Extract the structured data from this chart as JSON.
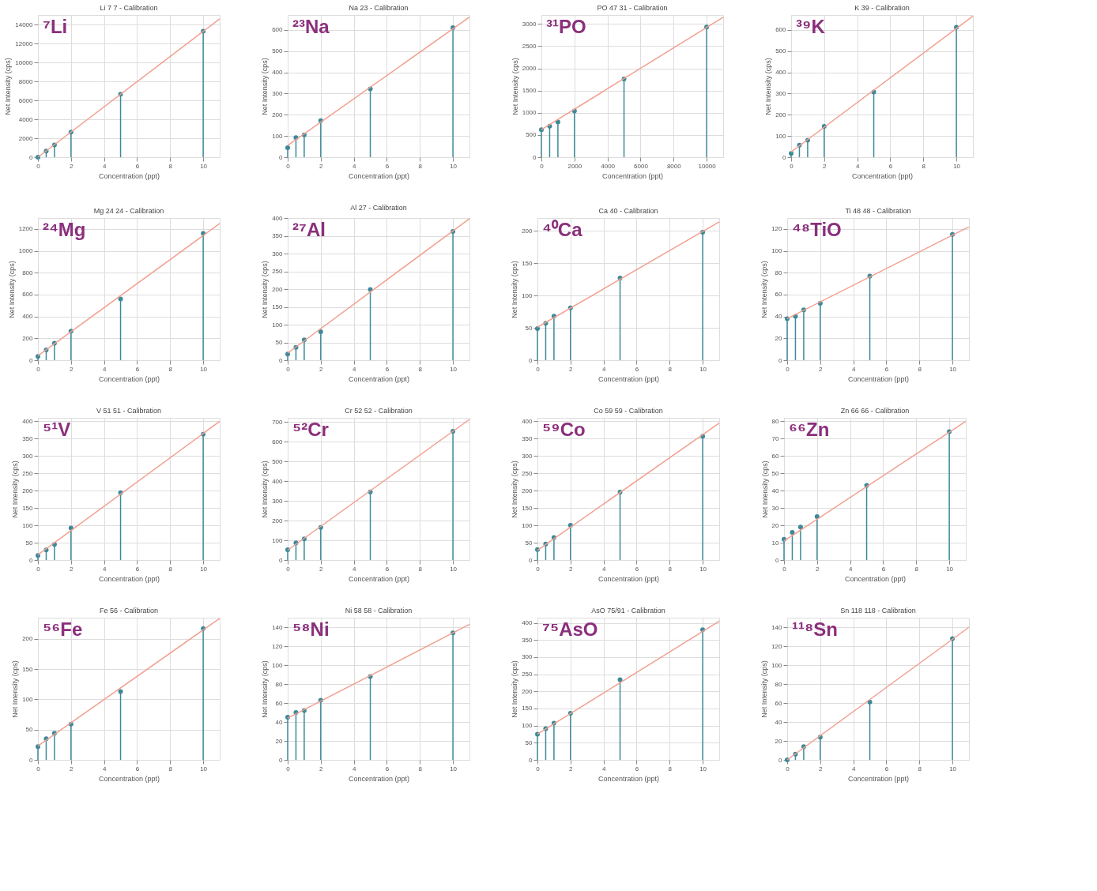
{
  "chart_data": [
    {
      "type": "lollipop",
      "title": "Li 7 7 - Calibration",
      "xlabel": "Concentration (ppt)",
      "ylabel": "Net Intensity (cps)",
      "annotations": [
        "⁷Li"
      ],
      "x": [
        0,
        0.5,
        1,
        2,
        5,
        10
      ],
      "xlim": [
        0,
        11
      ],
      "xticks": [
        0,
        2,
        4,
        6,
        8,
        10
      ],
      "ylim": [
        0,
        15000
      ],
      "yticks": [
        0,
        2000,
        4000,
        6000,
        8000,
        10000,
        12000,
        14000
      ],
      "grid": true,
      "marker": "circle",
      "series": [
        {
          "type": "lollipop",
          "color": "#3d8a99",
          "values": [
            0,
            650,
            1300,
            2650,
            6650,
            13300
          ]
        },
        {
          "type": "line",
          "color": "#f2a091",
          "marker": "none",
          "x": [
            0,
            11
          ],
          "values": [
            0,
            14600
          ]
        }
      ]
    },
    {
      "type": "lollipop",
      "title": "Na 23 - Calibration",
      "xlabel": "Concentration (ppt)",
      "ylabel": "Net Intensity (cps)",
      "annotations": [
        "²³Na"
      ],
      "x": [
        0,
        0.5,
        1,
        2,
        5,
        10
      ],
      "xlim": [
        0,
        11
      ],
      "xticks": [
        0,
        2,
        4,
        6,
        8,
        10
      ],
      "ylim": [
        0,
        670
      ],
      "yticks": [
        0,
        100,
        200,
        300,
        400,
        500,
        600
      ],
      "grid": true,
      "marker": "circle",
      "series": [
        {
          "type": "lollipop",
          "color": "#3d8a99",
          "values": [
            45,
            92,
            105,
            172,
            322,
            610
          ]
        },
        {
          "type": "line",
          "color": "#f2a091",
          "marker": "none",
          "x": [
            0,
            11
          ],
          "values": [
            55,
            660
          ]
        }
      ]
    },
    {
      "type": "lollipop",
      "title": "PO 47 31 - Calibration",
      "xlabel": "Concentration (ppt)",
      "ylabel": "Net Intensity (cps)",
      "annotations": [
        "³¹PO"
      ],
      "x": [
        0,
        500,
        1000,
        2000,
        5000,
        10000
      ],
      "xlim": [
        0,
        11000
      ],
      "xticks": [
        0,
        2000,
        4000,
        6000,
        8000,
        10000
      ],
      "ylim": [
        0,
        3200
      ],
      "yticks": [
        0,
        500,
        1000,
        1500,
        2000,
        2500,
        3000
      ],
      "grid": true,
      "marker": "circle",
      "series": [
        {
          "type": "lollipop",
          "color": "#3d8a99",
          "values": [
            620,
            700,
            790,
            1040,
            1760,
            2930
          ]
        },
        {
          "type": "line",
          "color": "#f2a091",
          "marker": "none",
          "x": [
            0,
            11000
          ],
          "values": [
            620,
            3150
          ]
        }
      ]
    },
    {
      "type": "lollipop",
      "title": "K 39 - Calibration",
      "xlabel": "Concentration (ppt)",
      "ylabel": "Net Intensity (cps)",
      "annotations": [
        "³⁹K"
      ],
      "x": [
        0,
        0.5,
        1,
        2,
        5,
        10
      ],
      "xlim": [
        0,
        11
      ],
      "xticks": [
        0,
        2,
        4,
        6,
        8,
        10
      ],
      "ylim": [
        0,
        670
      ],
      "yticks": [
        0,
        100,
        200,
        300,
        400,
        500,
        600
      ],
      "grid": true,
      "marker": "circle",
      "series": [
        {
          "type": "lollipop",
          "color": "#3d8a99",
          "values": [
            18,
            57,
            80,
            145,
            307,
            612
          ]
        },
        {
          "type": "line",
          "color": "#f2a091",
          "marker": "none",
          "x": [
            0,
            11
          ],
          "values": [
            25,
            665
          ]
        }
      ]
    },
    {
      "type": "lollipop",
      "title": "Mg 24 24 - Calibration",
      "xlabel": "Concentration (ppt)",
      "ylabel": "Net Intensity (cps)",
      "annotations": [
        "²⁴Mg"
      ],
      "x": [
        0,
        0.5,
        1,
        2,
        5,
        10
      ],
      "xlim": [
        0,
        11
      ],
      "xticks": [
        0,
        2,
        4,
        6,
        8,
        10
      ],
      "ylim": [
        0,
        1300
      ],
      "yticks": [
        0,
        200,
        400,
        600,
        800,
        1000,
        1200
      ],
      "grid": true,
      "marker": "circle",
      "series": [
        {
          "type": "lollipop",
          "color": "#3d8a99",
          "values": [
            35,
            93,
            155,
            265,
            560,
            1160
          ]
        },
        {
          "type": "line",
          "color": "#f2a091",
          "marker": "none",
          "x": [
            0,
            11
          ],
          "values": [
            40,
            1250
          ]
        }
      ]
    },
    {
      "type": "lollipop",
      "title": "Al 27 - Calibration",
      "xlabel": "Concentration (ppt)",
      "ylabel": "Net Intensity (cps)",
      "annotations": [
        "²⁷Al"
      ],
      "x": [
        0,
        0.5,
        1,
        2,
        5,
        10
      ],
      "xlim": [
        0,
        11
      ],
      "xticks": [
        0,
        2,
        4,
        6,
        8,
        10
      ],
      "ylim": [
        0,
        400
      ],
      "yticks": [
        0,
        50,
        100,
        150,
        200,
        250,
        300,
        350,
        400
      ],
      "grid": true,
      "marker": "circle",
      "series": [
        {
          "type": "lollipop",
          "color": "#3d8a99",
          "values": [
            17,
            36,
            57,
            80,
            199,
            362
          ]
        },
        {
          "type": "line",
          "color": "#f2a091",
          "marker": "none",
          "x": [
            0,
            11
          ],
          "values": [
            20,
            398
          ]
        }
      ]
    },
    {
      "type": "lollipop",
      "title": "Ca 40 - Calibration",
      "xlabel": "Concentration (ppt)",
      "ylabel": "Net Intensity (cps)",
      "annotations": [
        "⁴⁰Ca"
      ],
      "x": [
        0,
        0.5,
        1,
        2,
        5,
        10
      ],
      "xlim": [
        0,
        11
      ],
      "xticks": [
        0,
        2,
        4,
        6,
        8,
        10
      ],
      "ylim": [
        0,
        220
      ],
      "yticks": [
        0,
        50,
        100,
        150,
        200
      ],
      "grid": true,
      "marker": "circle",
      "series": [
        {
          "type": "lollipop",
          "color": "#3d8a99",
          "values": [
            49,
            57,
            68,
            81,
            127,
            198
          ]
        },
        {
          "type": "line",
          "color": "#f2a091",
          "marker": "none",
          "x": [
            0,
            11
          ],
          "values": [
            51,
            214
          ]
        }
      ]
    },
    {
      "type": "lollipop",
      "title": "Ti 48 48 - Calibration",
      "xlabel": "Concentration (ppt)",
      "ylabel": "Net Intensity (cps)",
      "annotations": [
        "⁴⁸TiO"
      ],
      "x": [
        0,
        0.5,
        1,
        2,
        5,
        10
      ],
      "xlim": [
        0,
        11
      ],
      "xticks": [
        0,
        2,
        4,
        6,
        8,
        10
      ],
      "ylim": [
        0,
        130
      ],
      "yticks": [
        0,
        20,
        40,
        60,
        80,
        100,
        120
      ],
      "grid": true,
      "marker": "circle",
      "series": [
        {
          "type": "lollipop",
          "color": "#3d8a99",
          "values": [
            38,
            40,
            46,
            52,
            77,
            115
          ]
        },
        {
          "type": "line",
          "color": "#f2a091",
          "marker": "none",
          "x": [
            0,
            11
          ],
          "values": [
            38,
            122
          ]
        }
      ]
    },
    {
      "type": "lollipop",
      "title": "V 51 51 - Calibration",
      "xlabel": "Concentration (ppt)",
      "ylabel": "Net Intensity (cps)",
      "annotations": [
        "⁵¹V"
      ],
      "x": [
        0,
        0.5,
        1,
        2,
        5,
        10
      ],
      "xlim": [
        0,
        11
      ],
      "xticks": [
        0,
        2,
        4,
        6,
        8,
        10
      ],
      "ylim": [
        0,
        410
      ],
      "yticks": [
        0,
        50,
        100,
        150,
        200,
        250,
        300,
        350,
        400
      ],
      "grid": true,
      "marker": "circle",
      "series": [
        {
          "type": "lollipop",
          "color": "#3d8a99",
          "values": [
            13,
            29,
            45,
            92,
            194,
            363
          ]
        },
        {
          "type": "line",
          "color": "#f2a091",
          "marker": "none",
          "x": [
            0,
            11
          ],
          "values": [
            15,
            400
          ]
        }
      ]
    },
    {
      "type": "lollipop",
      "title": "Cr 52 52 - Calibration",
      "xlabel": "Concentration (ppt)",
      "ylabel": "Net Intensity (cps)",
      "annotations": [
        "⁵²Cr"
      ],
      "x": [
        0,
        0.5,
        1,
        2,
        5,
        10
      ],
      "xlim": [
        0,
        11
      ],
      "xticks": [
        0,
        2,
        4,
        6,
        8,
        10
      ],
      "ylim": [
        0,
        720
      ],
      "yticks": [
        0,
        100,
        200,
        300,
        400,
        500,
        600,
        700
      ],
      "grid": true,
      "marker": "circle",
      "series": [
        {
          "type": "lollipop",
          "color": "#3d8a99",
          "values": [
            52,
            87,
            107,
            165,
            345,
            652
          ]
        },
        {
          "type": "line",
          "color": "#f2a091",
          "marker": "none",
          "x": [
            0,
            11
          ],
          "values": [
            50,
            712
          ]
        }
      ]
    },
    {
      "type": "lollipop",
      "title": "Co 59 59 - Calibration",
      "xlabel": "Concentration (ppt)",
      "ylabel": "Net Intensity (cps)",
      "annotations": [
        "⁵⁹Co"
      ],
      "x": [
        0,
        0.5,
        1,
        2,
        5,
        10
      ],
      "xlim": [
        0,
        11
      ],
      "xticks": [
        0,
        2,
        4,
        6,
        8,
        10
      ],
      "ylim": [
        0,
        410
      ],
      "yticks": [
        0,
        50,
        100,
        150,
        200,
        250,
        300,
        350,
        400
      ],
      "grid": true,
      "marker": "circle",
      "series": [
        {
          "type": "lollipop",
          "color": "#3d8a99",
          "values": [
            30,
            46,
            65,
            100,
            196,
            357
          ]
        },
        {
          "type": "line",
          "color": "#f2a091",
          "marker": "none",
          "x": [
            0,
            11
          ],
          "values": [
            28,
            395
          ]
        }
      ]
    },
    {
      "type": "lollipop",
      "title": "Zn 66 66 - Calibration",
      "xlabel": "Concentration (ppt)",
      "ylabel": "Net Intensity (cps)",
      "annotations": [
        "⁶⁶Zn"
      ],
      "x": [
        0,
        0.5,
        1,
        2,
        5,
        10
      ],
      "xlim": [
        0,
        11
      ],
      "xticks": [
        0,
        2,
        4,
        6,
        8,
        10
      ],
      "ylim": [
        0,
        82
      ],
      "yticks": [
        0,
        10,
        20,
        30,
        40,
        50,
        60,
        70,
        80
      ],
      "grid": true,
      "marker": "circle",
      "series": [
        {
          "type": "lollipop",
          "color": "#3d8a99",
          "values": [
            12,
            16,
            19,
            25,
            43,
            74
          ]
        },
        {
          "type": "line",
          "color": "#f2a091",
          "marker": "none",
          "x": [
            0,
            11
          ],
          "values": [
            11,
            80
          ]
        }
      ]
    },
    {
      "type": "lollipop",
      "title": "Fe 56 - Calibration",
      "xlabel": "Concentration (ppt)",
      "ylabel": "Net Intensity (cps)",
      "annotations": [
        "⁵⁶Fe"
      ],
      "x": [
        0,
        0.5,
        1,
        2,
        5,
        10
      ],
      "xlim": [
        0,
        11
      ],
      "xticks": [
        0,
        2,
        4,
        6,
        8,
        10
      ],
      "ylim": [
        0,
        235
      ],
      "yticks": [
        0,
        50,
        100,
        150,
        200
      ],
      "grid": true,
      "marker": "circle",
      "series": [
        {
          "type": "lollipop",
          "color": "#3d8a99",
          "values": [
            22,
            35,
            44,
            59,
            113,
            217
          ]
        },
        {
          "type": "line",
          "color": "#f2a091",
          "marker": "none",
          "x": [
            0,
            11
          ],
          "values": [
            23,
            234
          ]
        }
      ]
    },
    {
      "type": "lollipop",
      "title": "Ni 58 58 - Calibration",
      "xlabel": "Concentration (ppt)",
      "ylabel": "Net Intensity (cps)",
      "annotations": [
        "⁵⁸Ni"
      ],
      "x": [
        0,
        0.5,
        1,
        2,
        5,
        10
      ],
      "xlim": [
        0,
        11
      ],
      "xticks": [
        0,
        2,
        4,
        6,
        8,
        10
      ],
      "ylim": [
        0,
        150
      ],
      "yticks": [
        0,
        20,
        40,
        60,
        80,
        100,
        120,
        140
      ],
      "grid": true,
      "marker": "circle",
      "series": [
        {
          "type": "lollipop",
          "color": "#3d8a99",
          "values": [
            45,
            50,
            52,
            63,
            88,
            134
          ]
        },
        {
          "type": "line",
          "color": "#f2a091",
          "marker": "none",
          "x": [
            0,
            11
          ],
          "values": [
            44,
            143
          ]
        }
      ]
    },
    {
      "type": "lollipop",
      "title": "AsO 75/91 - Calibration",
      "xlabel": "Concentration (ppt)",
      "ylabel": "Net Intensity (cps)",
      "annotations": [
        "⁷⁵AsO"
      ],
      "x": [
        0,
        0.5,
        1,
        2,
        5,
        10
      ],
      "xlim": [
        0,
        11
      ],
      "xticks": [
        0,
        2,
        4,
        6,
        8,
        10
      ],
      "ylim": [
        0,
        415
      ],
      "yticks": [
        0,
        50,
        100,
        150,
        200,
        250,
        300,
        350,
        400
      ],
      "grid": true,
      "marker": "circle",
      "series": [
        {
          "type": "lollipop",
          "color": "#3d8a99",
          "values": [
            75,
            91,
            107,
            136,
            234,
            380
          ]
        },
        {
          "type": "line",
          "color": "#f2a091",
          "marker": "none",
          "x": [
            0,
            11
          ],
          "values": [
            75,
            405
          ]
        }
      ]
    },
    {
      "type": "lollipop",
      "title": "Sn 118 118 - Calibration",
      "xlabel": "Concentration (ppt)",
      "ylabel": "Net Intensity (cps)",
      "annotations": [
        "¹¹⁸Sn"
      ],
      "x": [
        0,
        0.5,
        1,
        2,
        5,
        10
      ],
      "xlim": [
        0,
        11
      ],
      "xticks": [
        0,
        2,
        4,
        6,
        8,
        10
      ],
      "ylim": [
        0,
        150
      ],
      "yticks": [
        0,
        20,
        40,
        60,
        80,
        100,
        120,
        140
      ],
      "grid": true,
      "marker": "circle",
      "series": [
        {
          "type": "lollipop",
          "color": "#3d8a99",
          "values": [
            0,
            6,
            14,
            24,
            61,
            128
          ]
        },
        {
          "type": "line",
          "color": "#f2a091",
          "marker": "none",
          "x": [
            0,
            11
          ],
          "values": [
            0,
            140
          ]
        }
      ]
    }
  ]
}
